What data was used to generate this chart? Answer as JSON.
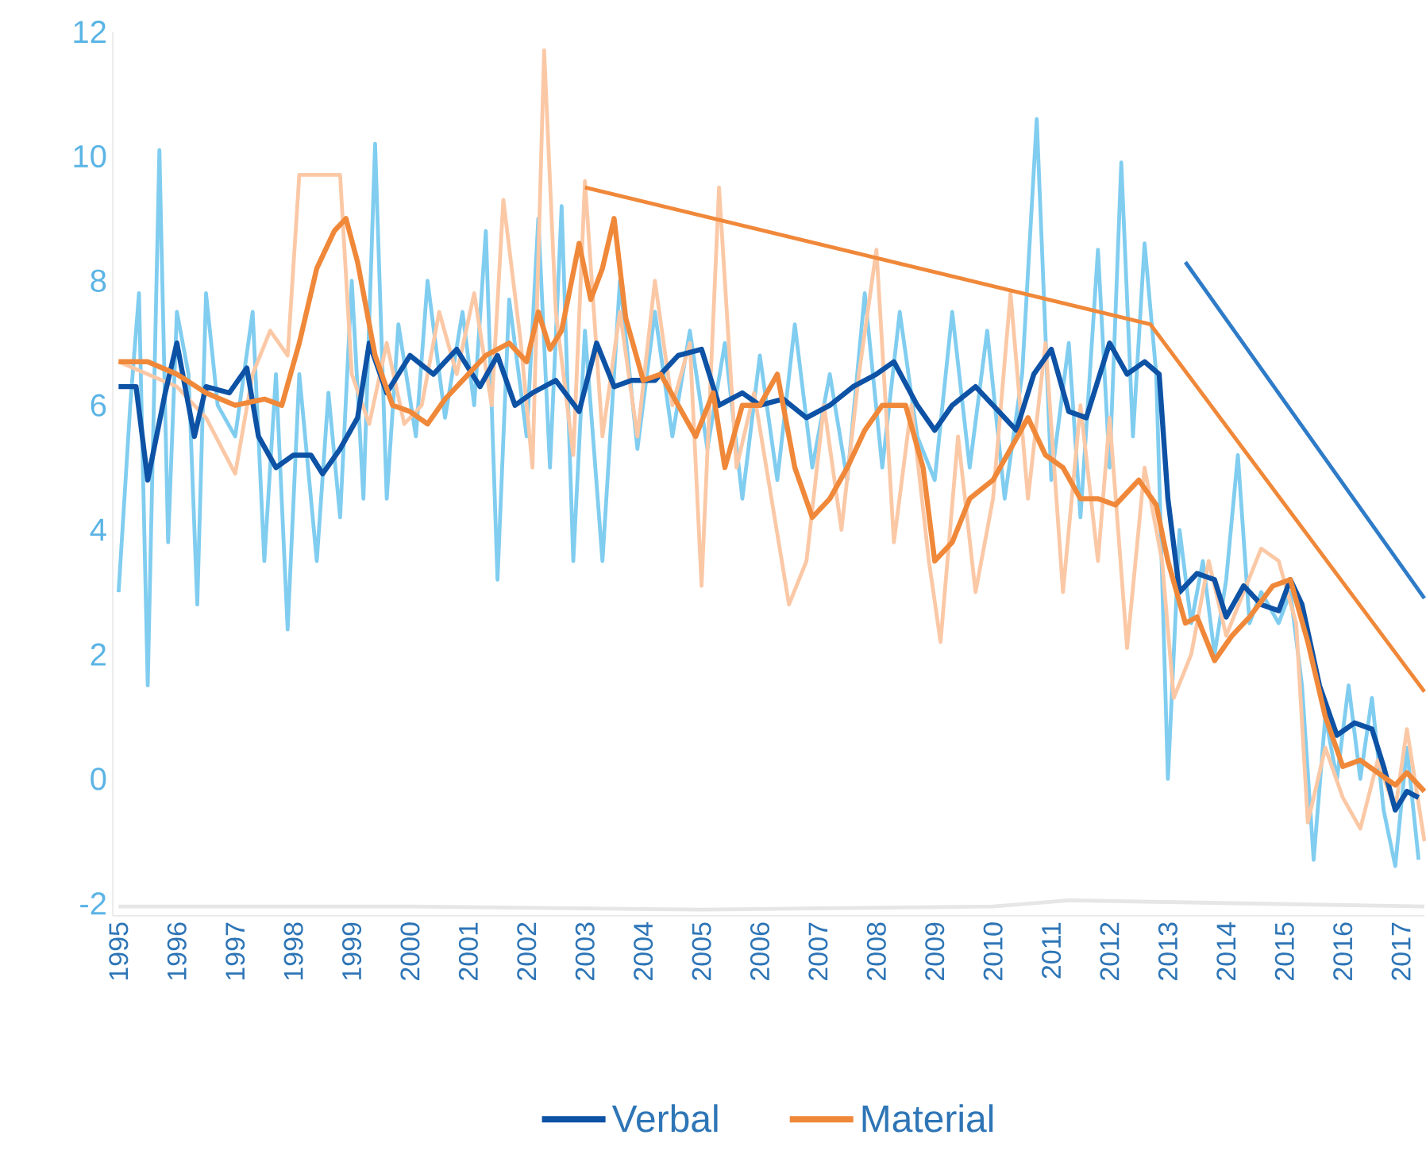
{
  "chart_data": {
    "type": "line",
    "marker": "none",
    "legend": "bottom",
    "grid": false,
    "xlim": [
      1994.9,
      2017.4
    ],
    "ylim": [
      -2.2,
      12
    ],
    "xticks": [
      1995,
      1996,
      1997,
      1998,
      1999,
      2000,
      2001,
      2002,
      2003,
      2004,
      2005,
      2006,
      2007,
      2008,
      2009,
      2010,
      2011,
      2012,
      2013,
      2014,
      2015,
      2016,
      2017
    ],
    "yticks": [
      -2,
      0,
      2,
      4,
      6,
      8,
      10,
      12
    ],
    "series": [
      {
        "color": "#80cdf0",
        "x": [
          1995.0,
          1995.2,
          1995.35,
          1995.5,
          1995.7,
          1995.85,
          1996.0,
          1996.2,
          1996.35,
          1996.5,
          1996.7,
          1997.0,
          1997.3,
          1997.5,
          1997.7,
          1997.9,
          1998.1,
          1998.4,
          1998.6,
          1998.8,
          1999.0,
          1999.2,
          1999.4,
          1999.6,
          1999.8,
          2000.1,
          2000.3,
          2000.6,
          2000.9,
          2001.1,
          2001.3,
          2001.5,
          2001.7,
          2002.0,
          2002.2,
          2002.4,
          2002.6,
          2002.8,
          2003.0,
          2003.3,
          2003.6,
          2003.9,
          2004.2,
          2004.5,
          2004.8,
          2005.1,
          2005.4,
          2005.7,
          2006.0,
          2006.3,
          2006.6,
          2006.9,
          2007.2,
          2007.5,
          2007.8,
          2008.1,
          2008.4,
          2008.7,
          2009.0,
          2009.3,
          2009.6,
          2009.9,
          2010.2,
          2010.5,
          2010.75,
          2011.0,
          2011.3,
          2011.5,
          2011.8,
          2012.0,
          2012.2,
          2012.4,
          2012.6,
          2012.8,
          2013.0,
          2013.2,
          2013.4,
          2013.6,
          2013.8,
          2014.0,
          2014.2,
          2014.4,
          2014.6,
          2014.9,
          2015.1,
          2015.3,
          2015.5,
          2015.7,
          2015.9,
          2016.1,
          2016.3,
          2016.5,
          2016.7,
          2016.9,
          2017.1,
          2017.3
        ],
        "values": [
          3.0,
          6.0,
          7.8,
          1.5,
          10.1,
          3.8,
          7.5,
          6.5,
          2.8,
          7.8,
          6.0,
          5.5,
          7.5,
          3.5,
          6.5,
          2.4,
          6.5,
          3.5,
          6.2,
          4.2,
          8.0,
          4.5,
          10.2,
          4.5,
          7.3,
          5.5,
          8.0,
          5.8,
          7.5,
          6.0,
          8.8,
          3.2,
          7.7,
          5.5,
          9.0,
          5.0,
          9.2,
          3.5,
          7.2,
          3.5,
          8.0,
          5.3,
          7.5,
          5.5,
          7.2,
          5.3,
          7.0,
          4.5,
          6.8,
          4.8,
          7.3,
          5.0,
          6.5,
          4.8,
          7.8,
          5.0,
          7.5,
          5.5,
          4.8,
          7.5,
          5.0,
          7.2,
          4.5,
          6.5,
          10.6,
          4.8,
          7.0,
          4.2,
          8.5,
          5.0,
          9.9,
          5.5,
          8.6,
          6.5,
          0.0,
          4.0,
          2.5,
          3.5,
          2.0,
          3.2,
          5.2,
          2.5,
          3.0,
          2.5,
          3.0,
          1.5,
          -1.3,
          1.0,
          0.0,
          1.5,
          0.0,
          1.3,
          -0.5,
          -1.4,
          0.5,
          -1.3
        ]
      },
      {
        "color": "#fbc8a6",
        "x": [
          1995.0,
          1995.5,
          1996.0,
          1996.5,
          1997.0,
          1997.3,
          1997.6,
          1997.9,
          1998.1,
          1998.5,
          1998.8,
          1999.0,
          1999.3,
          1999.6,
          1999.9,
          2000.2,
          2000.5,
          2000.8,
          2001.1,
          2001.4,
          2001.6,
          2001.9,
          2002.1,
          2002.3,
          2002.5,
          2002.8,
          2003.0,
          2003.3,
          2003.6,
          2003.9,
          2004.2,
          2004.5,
          2004.8,
          2005.0,
          2005.3,
          2005.6,
          2005.9,
          2006.2,
          2006.5,
          2006.8,
          2007.1,
          2007.4,
          2007.7,
          2008.0,
          2008.3,
          2008.6,
          2008.9,
          2009.1,
          2009.4,
          2009.7,
          2010.0,
          2010.3,
          2010.6,
          2010.9,
          2011.2,
          2011.5,
          2011.8,
          2012.0,
          2012.3,
          2012.6,
          2012.9,
          2013.1,
          2013.4,
          2013.7,
          2014.0,
          2014.3,
          2014.6,
          2014.9,
          2015.2,
          2015.4,
          2015.7,
          2016.0,
          2016.3,
          2016.6,
          2016.9,
          2017.1,
          2017.4
        ],
        "values": [
          6.7,
          6.5,
          6.3,
          5.8,
          4.9,
          6.5,
          7.2,
          6.8,
          9.7,
          9.7,
          9.7,
          6.5,
          5.7,
          7.0,
          5.7,
          6.0,
          7.5,
          6.5,
          7.8,
          6.0,
          9.3,
          7.0,
          5.0,
          11.7,
          7.5,
          5.2,
          9.6,
          5.5,
          7.5,
          5.5,
          8.0,
          6.0,
          7.0,
          3.1,
          9.5,
          5.0,
          6.2,
          4.5,
          2.8,
          3.5,
          6.0,
          4.0,
          6.5,
          8.5,
          3.8,
          6.0,
          3.5,
          2.2,
          5.5,
          3.0,
          4.5,
          7.8,
          4.5,
          7.0,
          3.0,
          6.0,
          3.5,
          5.8,
          2.1,
          5.0,
          3.5,
          1.3,
          2.0,
          3.5,
          2.3,
          3.0,
          3.7,
          3.5,
          2.5,
          -0.7,
          0.5,
          -0.3,
          -0.8,
          0.3,
          -0.5,
          0.8,
          -1.0
        ]
      },
      {
        "name": "Verbal",
        "color": "#0d52a5",
        "x": [
          1995.0,
          1995.3,
          1995.5,
          1995.8,
          1996.0,
          1996.3,
          1996.5,
          1996.9,
          1997.2,
          1997.4,
          1997.7,
          1998.0,
          1998.3,
          1998.5,
          1998.8,
          1999.1,
          1999.3,
          1999.6,
          2000.0,
          2000.4,
          2000.8,
          2001.2,
          2001.5,
          2001.8,
          2002.1,
          2002.5,
          2002.9,
          2003.2,
          2003.5,
          2003.8,
          2004.2,
          2004.6,
          2005.0,
          2005.3,
          2005.7,
          2006.0,
          2006.4,
          2006.8,
          2007.2,
          2007.6,
          2008.0,
          2008.3,
          2008.7,
          2009.0,
          2009.3,
          2009.7,
          2010.0,
          2010.4,
          2010.7,
          2011.0,
          2011.3,
          2011.6,
          2012.0,
          2012.3,
          2012.6,
          2012.85,
          2013.0,
          2013.2,
          2013.5,
          2013.8,
          2014.0,
          2014.3,
          2014.6,
          2014.9,
          2015.1,
          2015.3,
          2015.6,
          2015.9,
          2016.2,
          2016.5,
          2016.7,
          2016.9,
          2017.1,
          2017.3
        ],
        "values": [
          6.3,
          6.3,
          4.8,
          6.2,
          7.0,
          5.5,
          6.3,
          6.2,
          6.6,
          5.5,
          5.0,
          5.2,
          5.2,
          4.9,
          5.3,
          5.8,
          7.0,
          6.2,
          6.8,
          6.5,
          6.9,
          6.3,
          6.8,
          6.0,
          6.2,
          6.4,
          5.9,
          7.0,
          6.3,
          6.4,
          6.4,
          6.8,
          6.9,
          6.0,
          6.2,
          6.0,
          6.1,
          5.8,
          6.0,
          6.3,
          6.5,
          6.7,
          6.0,
          5.6,
          6.0,
          6.3,
          6.0,
          5.6,
          6.5,
          6.9,
          5.9,
          5.8,
          7.0,
          6.5,
          6.7,
          6.5,
          4.5,
          3.0,
          3.3,
          3.2,
          2.6,
          3.1,
          2.8,
          2.7,
          3.2,
          2.8,
          1.5,
          0.7,
          0.9,
          0.8,
          0.2,
          -0.5,
          -0.2,
          -0.3
        ]
      },
      {
        "name": "Material",
        "color": "#f0883a",
        "x": [
          1995.0,
          1995.5,
          1996.0,
          1996.5,
          1997.0,
          1997.5,
          1997.8,
          1998.1,
          1998.4,
          1998.7,
          1998.9,
          1999.1,
          1999.4,
          1999.7,
          2000.0,
          2000.3,
          2000.6,
          2001.0,
          2001.3,
          2001.7,
          2002.0,
          2002.2,
          2002.4,
          2002.6,
          2002.9,
          2003.1,
          2003.3,
          2003.5,
          2003.7,
          2004.0,
          2004.3,
          2004.6,
          2004.9,
          2005.2,
          2005.4,
          2005.7,
          2006.0,
          2006.3,
          2006.6,
          2006.9,
          2007.2,
          2007.5,
          2007.8,
          2008.1,
          2008.5,
          2008.8,
          2009.0,
          2009.3,
          2009.6,
          2010.0,
          2010.3,
          2010.6,
          2010.9,
          2011.2,
          2011.5,
          2011.8,
          2012.1,
          2012.5,
          2012.8,
          2013.0,
          2013.3,
          2013.5,
          2013.8,
          2014.1,
          2014.4,
          2014.8,
          2015.1,
          2015.4,
          2015.7,
          2016.0,
          2016.3,
          2016.6,
          2016.9,
          2017.1,
          2017.4
        ],
        "values": [
          6.7,
          6.7,
          6.5,
          6.2,
          6.0,
          6.1,
          6.0,
          7.0,
          8.2,
          8.8,
          9.0,
          8.3,
          6.8,
          6.0,
          5.9,
          5.7,
          6.1,
          6.5,
          6.8,
          7.0,
          6.7,
          7.5,
          6.9,
          7.2,
          8.6,
          7.7,
          8.2,
          9.0,
          7.4,
          6.4,
          6.5,
          6.0,
          5.5,
          6.2,
          5.0,
          6.0,
          6.0,
          6.5,
          5.0,
          4.2,
          4.5,
          5.0,
          5.6,
          6.0,
          6.0,
          5.0,
          3.5,
          3.8,
          4.5,
          4.8,
          5.3,
          5.8,
          5.2,
          5.0,
          4.5,
          4.5,
          4.4,
          4.8,
          4.4,
          3.5,
          2.5,
          2.6,
          1.9,
          2.3,
          2.6,
          3.1,
          3.2,
          2.2,
          1.0,
          0.2,
          0.3,
          0.1,
          -0.1,
          0.1,
          -0.2
        ]
      },
      {
        "color": "#e6e6e6",
        "x": [
          1995.0,
          2000.0,
          2005.0,
          2010.0,
          2011.3,
          2017.4
        ],
        "values": [
          -2.05,
          -2.05,
          -2.1,
          -2.05,
          -1.95,
          -2.05
        ]
      },
      {
        "color": "#f0883a",
        "x": [
          2003.0,
          2012.7,
          2017.4
        ],
        "values": [
          9.5,
          7.3,
          1.4
        ]
      },
      {
        "color": "#2e7bc8",
        "x": [
          2013.3,
          2017.4
        ],
        "values": [
          8.3,
          2.9
        ]
      }
    ]
  }
}
